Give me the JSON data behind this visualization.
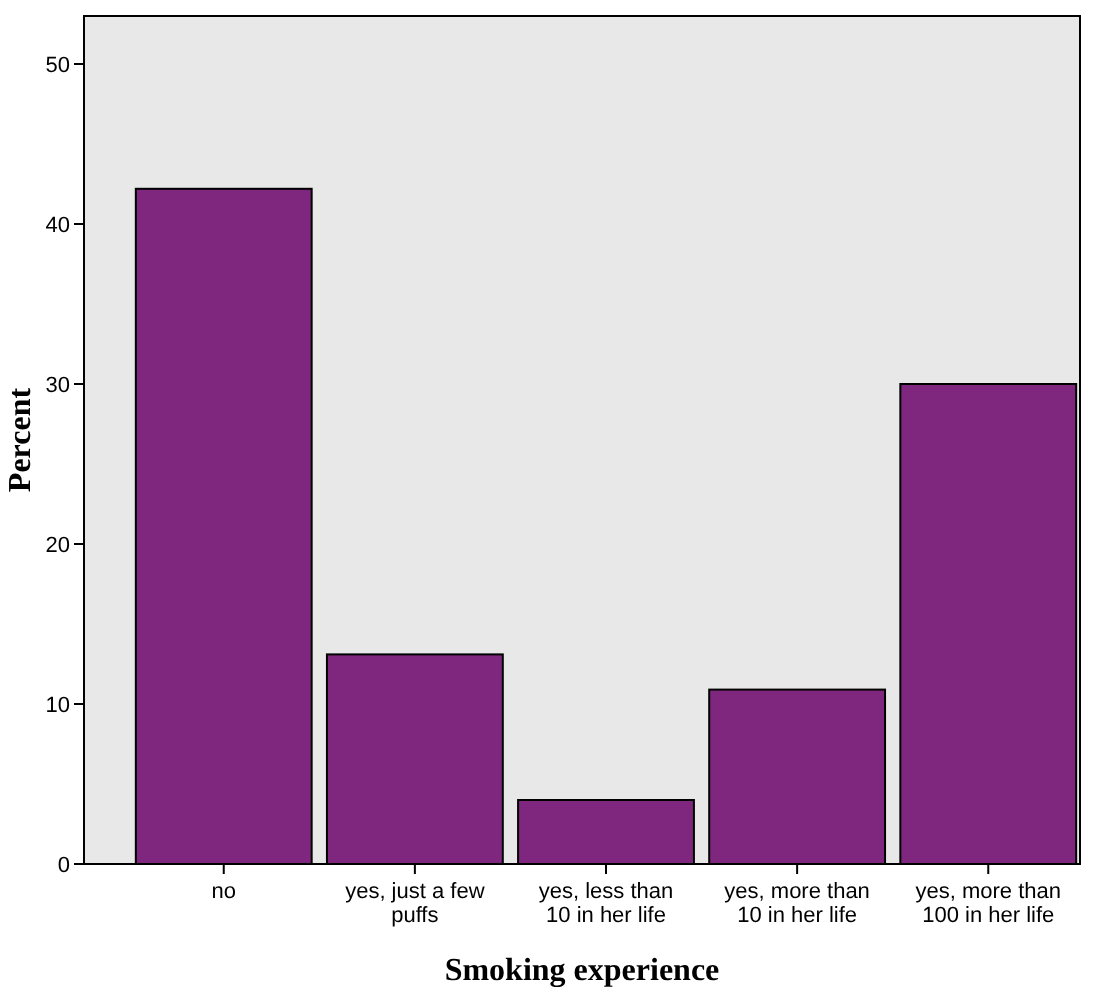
{
  "chart_data": {
    "type": "bar",
    "xlabel": "Smoking experience",
    "ylabel": "Percent",
    "categories": [
      "no",
      "yes, just a few\npuffs",
      "yes, less than\n10 in her life",
      "yes, more than\n10 in her life",
      "yes, more than\n100 in her life"
    ],
    "values": [
      42.2,
      13.1,
      4.0,
      10.9,
      30.0
    ],
    "color": "#7f277f",
    "ylim": [
      0,
      53
    ],
    "yticks": [
      0,
      10,
      20,
      30,
      40,
      50
    ],
    "grid": false
  }
}
